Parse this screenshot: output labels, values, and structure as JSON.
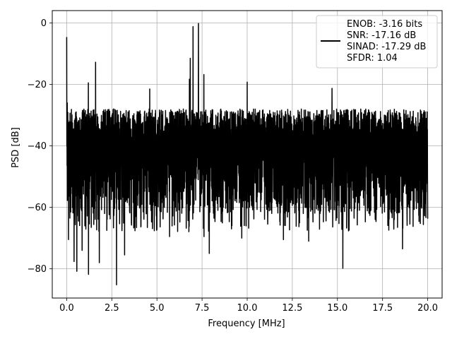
{
  "chart_data": {
    "type": "line",
    "xlabel": "Frequency [MHz]",
    "ylabel": "PSD [dB]",
    "xlim": [
      -0.8,
      20.8
    ],
    "ylim": [
      -89.5,
      4
    ],
    "x_ticks": [
      0.0,
      2.5,
      5.0,
      7.5,
      10.0,
      12.5,
      15.0,
      17.5,
      20.0
    ],
    "x_tick_labels": [
      "0.0",
      "2.5",
      "5.0",
      "7.5",
      "10.0",
      "12.5",
      "15.0",
      "17.5",
      "20.0"
    ],
    "y_ticks": [
      0,
      -20,
      -40,
      -60,
      -80
    ],
    "y_tick_labels": [
      "0",
      "−20",
      "−40",
      "−60",
      "−80"
    ],
    "grid": true,
    "legend_position": "upper-right",
    "series_color": "#000000",
    "legend_lines": [
      "ENOB: -3.16 bits",
      "SNR: -17.16 dB",
      "SINAD: -17.29 dB",
      "SFDR: 1.04"
    ],
    "noise_floor": {
      "x_range": [
        0,
        20
      ],
      "approx_upper_dB": -28,
      "approx_lower_dB": -62,
      "approx_mean_dB": -40
    },
    "spur_peaks": [
      {
        "x": 0.0,
        "y": -4.6
      },
      {
        "x": 0.03,
        "y": -26
      },
      {
        "x": 1.2,
        "y": -19.5
      },
      {
        "x": 1.6,
        "y": -12.8
      },
      {
        "x": 2.6,
        "y": -28
      },
      {
        "x": 4.6,
        "y": -21.5
      },
      {
        "x": 6.8,
        "y": -18.3
      },
      {
        "x": 7.0,
        "y": -1.2
      },
      {
        "x": 7.3,
        "y": -0.2
      },
      {
        "x": 6.85,
        "y": -11.5
      },
      {
        "x": 7.6,
        "y": -16.8
      },
      {
        "x": 10.0,
        "y": -19.3
      },
      {
        "x": 14.7,
        "y": -21.3
      }
    ],
    "dips": [
      {
        "x": 0.1,
        "y": -70.5
      },
      {
        "x": 0.4,
        "y": -77.6
      },
      {
        "x": 0.55,
        "y": -80.8
      },
      {
        "x": 0.85,
        "y": -74
      },
      {
        "x": 1.2,
        "y": -81.8
      },
      {
        "x": 1.8,
        "y": -78
      },
      {
        "x": 2.75,
        "y": -85.2
      },
      {
        "x": 3.2,
        "y": -75.5
      },
      {
        "x": 5.7,
        "y": -69.5
      },
      {
        "x": 7.6,
        "y": -69.5
      },
      {
        "x": 7.9,
        "y": -75
      },
      {
        "x": 9.7,
        "y": -70
      },
      {
        "x": 12.0,
        "y": -70.5
      },
      {
        "x": 13.4,
        "y": -71
      },
      {
        "x": 15.3,
        "y": -79.8
      },
      {
        "x": 18.6,
        "y": -73.5
      }
    ]
  }
}
